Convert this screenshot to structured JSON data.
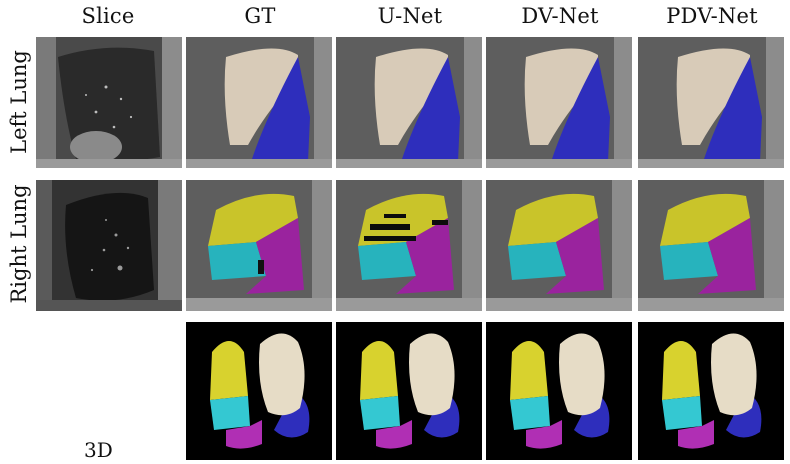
{
  "columns": [
    "Slice",
    "GT",
    "U-Net",
    "DV-Net",
    "PDV-Net"
  ],
  "rows": [
    "Left Lung",
    "Right Lung"
  ],
  "row3_label": "3D",
  "colors": {
    "upper_lobe_left": "#d8cbb8",
    "lower_lobe_left": "#2e2ebc",
    "upper_lobe_right": "#c9c42a",
    "middle_lobe_right": "#27b3bd",
    "lower_lobe_right": "#9a239e",
    "ct_background": "#6a6a6a",
    "panel_black": "#000000"
  }
}
